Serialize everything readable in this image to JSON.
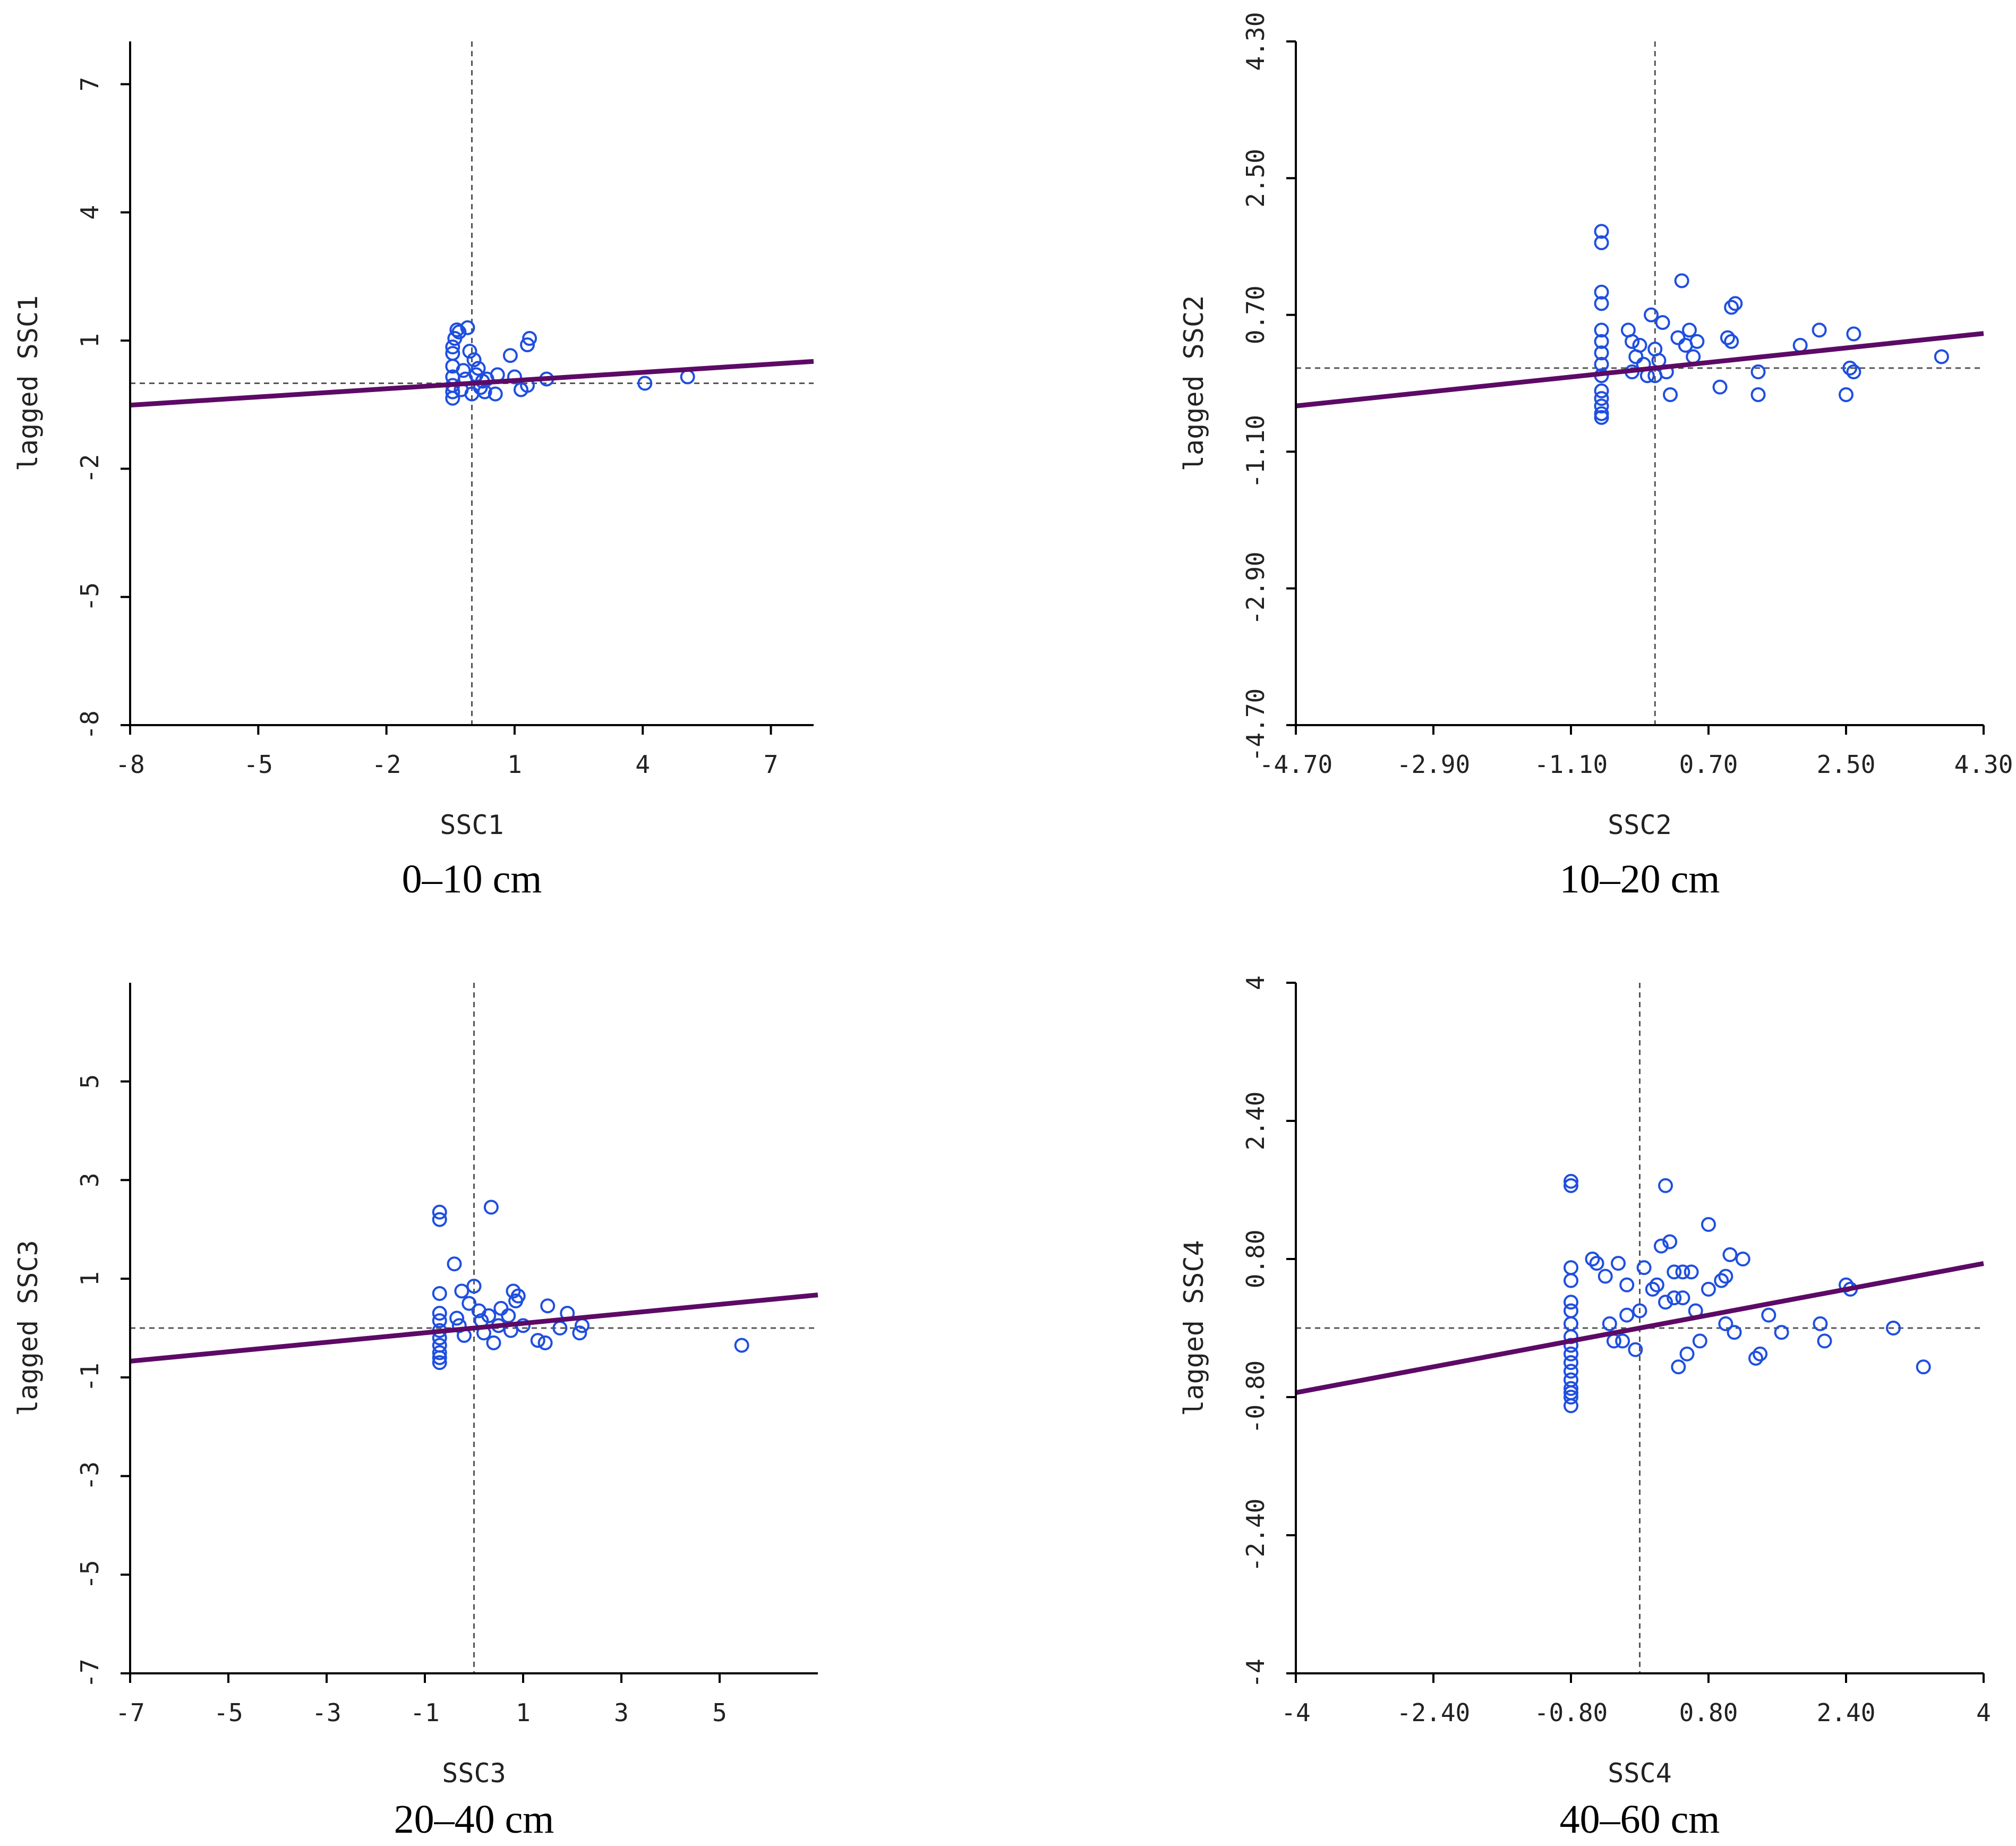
{
  "colors": {
    "axis": "#000000",
    "point": "#1f4fe0",
    "fit_line": "#5c0a66",
    "reference_line": "#555555"
  },
  "chart_data": [
    {
      "type": "scatter",
      "name": "panel-0-10",
      "caption": "0–10 cm",
      "xlabel": "SSC1",
      "ylabel": "lagged SSC1",
      "xlim": [
        -8,
        8
      ],
      "ylim": [
        -8,
        8
      ],
      "xticks": [
        "-8",
        "-5",
        "-2",
        "1",
        "4",
        "7"
      ],
      "xtick_values": [
        -8,
        -5,
        -2,
        1,
        4,
        7
      ],
      "yticks": [
        "-8",
        "-5",
        "-2",
        "1",
        "4",
        "7"
      ],
      "ytick_values": [
        -8,
        -5,
        -2,
        1,
        4,
        7
      ],
      "reference_lines": {
        "x": 0,
        "y": 0
      },
      "fit_line": {
        "slope": 0.064,
        "intercept": 0.0
      },
      "points": [
        [
          -0.45,
          0.4
        ],
        [
          -0.45,
          0.15
        ],
        [
          -0.45,
          -0.05
        ],
        [
          -0.45,
          -0.2
        ],
        [
          -0.45,
          -0.35
        ],
        [
          -0.45,
          0.7
        ],
        [
          -0.45,
          0.85
        ],
        [
          -0.4,
          1.05
        ],
        [
          -0.35,
          1.25
        ],
        [
          -0.3,
          1.2
        ],
        [
          -0.2,
          0.3
        ],
        [
          -0.15,
          0.1
        ],
        [
          -0.1,
          1.3
        ],
        [
          -0.05,
          0.75
        ],
        [
          0.05,
          0.55
        ],
        [
          0.1,
          0.2
        ],
        [
          0.15,
          0.35
        ],
        [
          0.2,
          -0.1
        ],
        [
          0.25,
          0.05
        ],
        [
          0.3,
          -0.2
        ],
        [
          0.35,
          0.1
        ],
        [
          -0.25,
          -0.15
        ],
        [
          0.0,
          -0.25
        ],
        [
          0.55,
          -0.25
        ],
        [
          0.6,
          0.2
        ],
        [
          0.9,
          0.65
        ],
        [
          1.0,
          0.15
        ],
        [
          1.15,
          -0.15
        ],
        [
          1.3,
          -0.05
        ],
        [
          1.3,
          0.9
        ],
        [
          1.35,
          1.05
        ],
        [
          1.75,
          0.1
        ],
        [
          4.05,
          0.0
        ],
        [
          5.05,
          0.15
        ]
      ]
    },
    {
      "type": "scatter",
      "name": "panel-10-20",
      "caption": "10–20 cm",
      "xlabel": "SSC2",
      "ylabel": "lagged SSC2",
      "xlim": [
        -4.7,
        4.3
      ],
      "ylim": [
        -4.7,
        4.3
      ],
      "xticks": [
        "-4.70",
        "-2.90",
        "-1.10",
        "0.70",
        "2.50",
        "4.30"
      ],
      "xtick_values": [
        -4.7,
        -2.9,
        -1.1,
        0.7,
        2.5,
        4.3
      ],
      "yticks": [
        "-4.70",
        "-2.90",
        "-1.10",
        "0.70",
        "2.50",
        "4.30"
      ],
      "ytick_values": [
        -4.7,
        -2.9,
        -1.1,
        0.7,
        2.5,
        4.3
      ],
      "reference_lines": {
        "x": 0,
        "y": 0
      },
      "fit_line": {
        "slope": 0.106,
        "intercept": 0.0
      },
      "points": [
        [
          -0.7,
          1.8
        ],
        [
          -0.7,
          1.65
        ],
        [
          -0.7,
          1.0
        ],
        [
          -0.7,
          0.85
        ],
        [
          -0.7,
          0.5
        ],
        [
          -0.7,
          0.35
        ],
        [
          -0.7,
          0.2
        ],
        [
          -0.7,
          0.05
        ],
        [
          -0.7,
          -0.1
        ],
        [
          -0.7,
          -0.3
        ],
        [
          -0.7,
          -0.4
        ],
        [
          -0.7,
          -0.5
        ],
        [
          -0.7,
          -0.6
        ],
        [
          -0.7,
          -0.65
        ],
        [
          -0.35,
          0.5
        ],
        [
          -0.3,
          0.35
        ],
        [
          -0.25,
          0.15
        ],
        [
          -0.2,
          0.3
        ],
        [
          -0.15,
          0.05
        ],
        [
          -0.1,
          -0.1
        ],
        [
          -0.05,
          0.7
        ],
        [
          0.0,
          0.25
        ],
        [
          0.05,
          0.1
        ],
        [
          0.1,
          0.6
        ],
        [
          0.15,
          -0.05
        ],
        [
          0.2,
          -0.35
        ],
        [
          0.3,
          0.4
        ],
        [
          0.35,
          1.15
        ],
        [
          0.4,
          0.3
        ],
        [
          0.45,
          0.5
        ],
        [
          0.5,
          0.15
        ],
        [
          0.55,
          0.35
        ],
        [
          -0.3,
          -0.05
        ],
        [
          0.0,
          -0.1
        ],
        [
          0.85,
          -0.25
        ],
        [
          0.95,
          0.4
        ],
        [
          1.0,
          0.35
        ],
        [
          1.0,
          0.8
        ],
        [
          1.05,
          0.85
        ],
        [
          1.35,
          -0.05
        ],
        [
          1.35,
          -0.35
        ],
        [
          1.9,
          0.3
        ],
        [
          2.15,
          0.5
        ],
        [
          2.5,
          -0.35
        ],
        [
          2.55,
          0.0
        ],
        [
          2.6,
          -0.05
        ],
        [
          2.6,
          0.45
        ],
        [
          3.75,
          0.15
        ]
      ]
    },
    {
      "type": "scatter",
      "name": "panel-20-40",
      "caption": "20–40 cm",
      "xlabel": "SSC3",
      "ylabel": "lagged SSC3",
      "xlim": [
        -7,
        7
      ],
      "ylim": [
        -7,
        7
      ],
      "xticks": [
        "-7",
        "-5",
        "-3",
        "-1",
        "1",
        "3",
        "5"
      ],
      "xtick_values": [
        -7,
        -5,
        -3,
        -1,
        1,
        3,
        5
      ],
      "yticks": [
        "-7",
        "-5",
        "-3",
        "-1",
        "1",
        "3",
        "5"
      ],
      "ytick_values": [
        -7,
        -5,
        -3,
        -1,
        1,
        3,
        5
      ],
      "reference_lines": {
        "x": 0,
        "y": 0
      },
      "fit_line": {
        "slope": 0.096,
        "intercept": 0.0
      },
      "points": [
        [
          -0.7,
          2.35
        ],
        [
          -0.7,
          2.2
        ],
        [
          -0.7,
          0.7
        ],
        [
          -0.7,
          0.3
        ],
        [
          -0.7,
          0.15
        ],
        [
          -0.7,
          -0.05
        ],
        [
          -0.7,
          -0.2
        ],
        [
          -0.7,
          -0.35
        ],
        [
          -0.7,
          -0.5
        ],
        [
          -0.7,
          -0.6
        ],
        [
          -0.7,
          -0.7
        ],
        [
          -0.4,
          1.3
        ],
        [
          -0.35,
          0.2
        ],
        [
          -0.3,
          0.05
        ],
        [
          -0.25,
          0.75
        ],
        [
          -0.2,
          -0.15
        ],
        [
          -0.1,
          0.5
        ],
        [
          0.0,
          0.85
        ],
        [
          0.1,
          0.35
        ],
        [
          0.15,
          0.15
        ],
        [
          0.2,
          -0.1
        ],
        [
          0.3,
          0.25
        ],
        [
          0.35,
          2.45
        ],
        [
          0.4,
          -0.3
        ],
        [
          0.5,
          0.05
        ],
        [
          0.55,
          0.4
        ],
        [
          0.7,
          0.25
        ],
        [
          0.75,
          -0.05
        ],
        [
          0.8,
          0.75
        ],
        [
          0.85,
          0.55
        ],
        [
          0.9,
          0.65
        ],
        [
          1.0,
          0.05
        ],
        [
          1.3,
          -0.25
        ],
        [
          1.45,
          -0.3
        ],
        [
          1.5,
          0.45
        ],
        [
          1.75,
          0.0
        ],
        [
          1.9,
          0.3
        ],
        [
          2.15,
          -0.1
        ],
        [
          2.2,
          0.05
        ],
        [
          5.45,
          -0.35
        ]
      ]
    },
    {
      "type": "scatter",
      "name": "panel-40-60",
      "caption": "40–60 cm",
      "xlabel": "SSC4",
      "ylabel": "lagged SSC4",
      "xlim": [
        -4,
        4
      ],
      "ylim": [
        -4,
        4
      ],
      "xticks": [
        "-4",
        "-2.40",
        "-0.80",
        "0.80",
        "2.40",
        "4"
      ],
      "xtick_values": [
        -4,
        -2.4,
        -0.8,
        0.8,
        2.4,
        4
      ],
      "yticks": [
        "-4",
        "-2.40",
        "-0.80",
        "0.80",
        "2.40",
        "4"
      ],
      "ytick_values": [
        -4,
        -2.4,
        -0.8,
        0.8,
        2.4,
        4
      ],
      "reference_lines": {
        "x": 0,
        "y": 0
      },
      "fit_line": {
        "slope": 0.187,
        "intercept": 0.0
      },
      "points": [
        [
          -0.8,
          1.7
        ],
        [
          -0.8,
          1.65
        ],
        [
          -0.8,
          0.7
        ],
        [
          -0.8,
          0.55
        ],
        [
          -0.8,
          0.3
        ],
        [
          -0.8,
          0.2
        ],
        [
          -0.8,
          0.05
        ],
        [
          -0.8,
          -0.1
        ],
        [
          -0.8,
          -0.2
        ],
        [
          -0.8,
          -0.3
        ],
        [
          -0.8,
          -0.4
        ],
        [
          -0.8,
          -0.5
        ],
        [
          -0.8,
          -0.6
        ],
        [
          -0.8,
          -0.7
        ],
        [
          -0.8,
          -0.8
        ],
        [
          -0.8,
          -0.9
        ],
        [
          -0.8,
          -0.75
        ],
        [
          -0.55,
          0.8
        ],
        [
          -0.5,
          0.75
        ],
        [
          -0.4,
          0.6
        ],
        [
          -0.35,
          0.05
        ],
        [
          -0.3,
          -0.15
        ],
        [
          -0.25,
          0.75
        ],
        [
          -0.2,
          -0.15
        ],
        [
          -0.15,
          0.5
        ],
        [
          -0.15,
          0.15
        ],
        [
          -0.05,
          -0.25
        ],
        [
          0.0,
          0.2
        ],
        [
          0.05,
          0.7
        ],
        [
          0.15,
          0.45
        ],
        [
          0.2,
          0.5
        ],
        [
          0.25,
          0.95
        ],
        [
          0.3,
          1.65
        ],
        [
          0.3,
          0.3
        ],
        [
          0.35,
          1.0
        ],
        [
          0.4,
          0.35
        ],
        [
          0.4,
          0.65
        ],
        [
          0.45,
          -0.45
        ],
        [
          0.5,
          0.65
        ],
        [
          0.5,
          0.35
        ],
        [
          0.55,
          -0.3
        ],
        [
          0.6,
          0.65
        ],
        [
          0.65,
          0.2
        ],
        [
          0.7,
          -0.15
        ],
        [
          0.8,
          0.45
        ],
        [
          0.8,
          1.2
        ],
        [
          0.95,
          0.55
        ],
        [
          1.0,
          0.05
        ],
        [
          1.0,
          0.6
        ],
        [
          1.05,
          0.85
        ],
        [
          1.1,
          -0.05
        ],
        [
          1.2,
          0.8
        ],
        [
          1.35,
          -0.35
        ],
        [
          1.4,
          -0.3
        ],
        [
          1.5,
          0.15
        ],
        [
          1.65,
          -0.05
        ],
        [
          2.1,
          0.05
        ],
        [
          2.15,
          -0.15
        ],
        [
          2.4,
          0.5
        ],
        [
          2.45,
          0.45
        ],
        [
          2.95,
          0.0
        ],
        [
          3.3,
          -0.45
        ]
      ]
    }
  ]
}
